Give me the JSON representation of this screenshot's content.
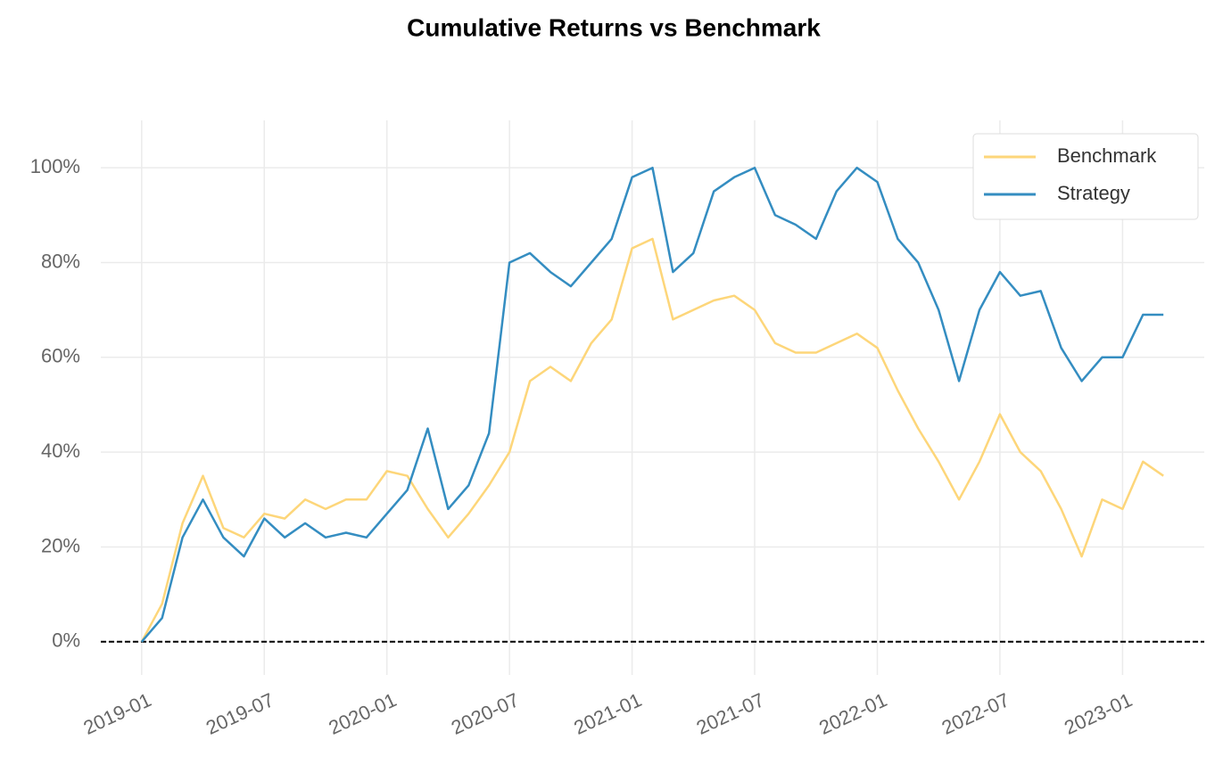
{
  "chart_data": {
    "type": "line",
    "title": "Cumulative Returns vs Benchmark",
    "x": [
      "2019-01",
      "2019-02",
      "2019-03",
      "2019-04",
      "2019-05",
      "2019-06",
      "2019-07",
      "2019-08",
      "2019-09",
      "2019-10",
      "2019-11",
      "2019-12",
      "2020-01",
      "2020-02",
      "2020-03",
      "2020-04",
      "2020-05",
      "2020-06",
      "2020-07",
      "2020-08",
      "2020-09",
      "2020-10",
      "2020-11",
      "2020-12",
      "2021-01",
      "2021-02",
      "2021-03",
      "2021-04",
      "2021-05",
      "2021-06",
      "2021-07",
      "2021-08",
      "2021-09",
      "2021-10",
      "2021-11",
      "2021-12",
      "2022-01",
      "2022-02",
      "2022-03",
      "2022-04",
      "2022-05",
      "2022-06",
      "2022-07",
      "2022-08",
      "2022-09",
      "2022-10",
      "2022-11",
      "2022-12",
      "2023-01",
      "2023-02",
      "2023-03"
    ],
    "series": [
      {
        "name": "Benchmark",
        "color": "#fdd67a",
        "values": [
          0,
          8,
          25,
          35,
          24,
          22,
          27,
          26,
          30,
          28,
          30,
          30,
          36,
          35,
          28,
          22,
          27,
          33,
          40,
          55,
          58,
          55,
          63,
          68,
          83,
          85,
          68,
          70,
          72,
          73,
          70,
          63,
          61,
          61,
          63,
          65,
          62,
          53,
          45,
          38,
          30,
          38,
          48,
          40,
          36,
          28,
          18,
          30,
          28,
          38,
          35
        ]
      },
      {
        "name": "Strategy",
        "color": "#348dc1",
        "values": [
          0,
          5,
          22,
          30,
          22,
          18,
          26,
          22,
          25,
          22,
          23,
          22,
          27,
          32,
          45,
          28,
          33,
          44,
          80,
          82,
          78,
          75,
          80,
          85,
          98,
          100,
          78,
          82,
          95,
          98,
          100,
          90,
          88,
          85,
          95,
          100,
          97,
          85,
          80,
          70,
          55,
          70,
          78,
          73,
          74,
          62,
          55,
          60,
          60,
          69,
          69
        ]
      }
    ],
    "xlim": [
      "2018-11",
      "2023-05"
    ],
    "xticks": [
      "2019-01",
      "2019-07",
      "2020-01",
      "2020-07",
      "2021-01",
      "2021-07",
      "2022-01",
      "2022-07",
      "2023-01"
    ],
    "ylim": [
      -7,
      110
    ],
    "yticks": [
      {
        "value": 0,
        "label": "0%"
      },
      {
        "value": 20,
        "label": "20%"
      },
      {
        "value": 40,
        "label": "40%"
      },
      {
        "value": 60,
        "label": "60%"
      },
      {
        "value": 80,
        "label": "80%"
      },
      {
        "value": 100,
        "label": "100%"
      }
    ],
    "grid": true,
    "legend": "upper right"
  }
}
